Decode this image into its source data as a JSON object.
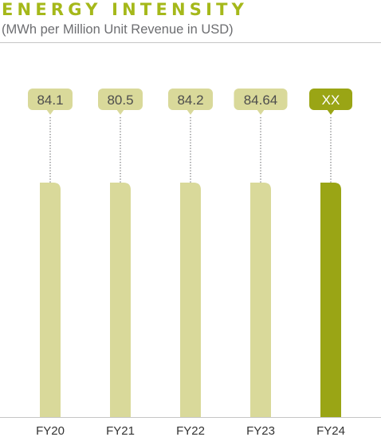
{
  "colors": {
    "accent": "#a5b81a",
    "bar_past": "#d9d99a",
    "bar_current": "#9aa515",
    "label_current_text": "#ffffff",
    "label_past_text": "#4d4d4d",
    "axis_line": "#c6c6c6",
    "leader_line": "#6d6e71",
    "tick_label": "#333333"
  },
  "chart_data": {
    "type": "bar",
    "title": "ENERGY INTENSITY",
    "subtitle": "(MWh per Million Unit Revenue in USD)",
    "categories": [
      "FY20",
      "FY21",
      "FY22",
      "FY23",
      "FY24"
    ],
    "values": [
      84.1,
      80.5,
      84.2,
      84.64,
      null
    ],
    "data_labels": [
      "84.1",
      "80.5",
      "84.2",
      "84.64",
      "XX"
    ],
    "highlighted_category": "FY24",
    "grid": false,
    "legend": "none"
  }
}
